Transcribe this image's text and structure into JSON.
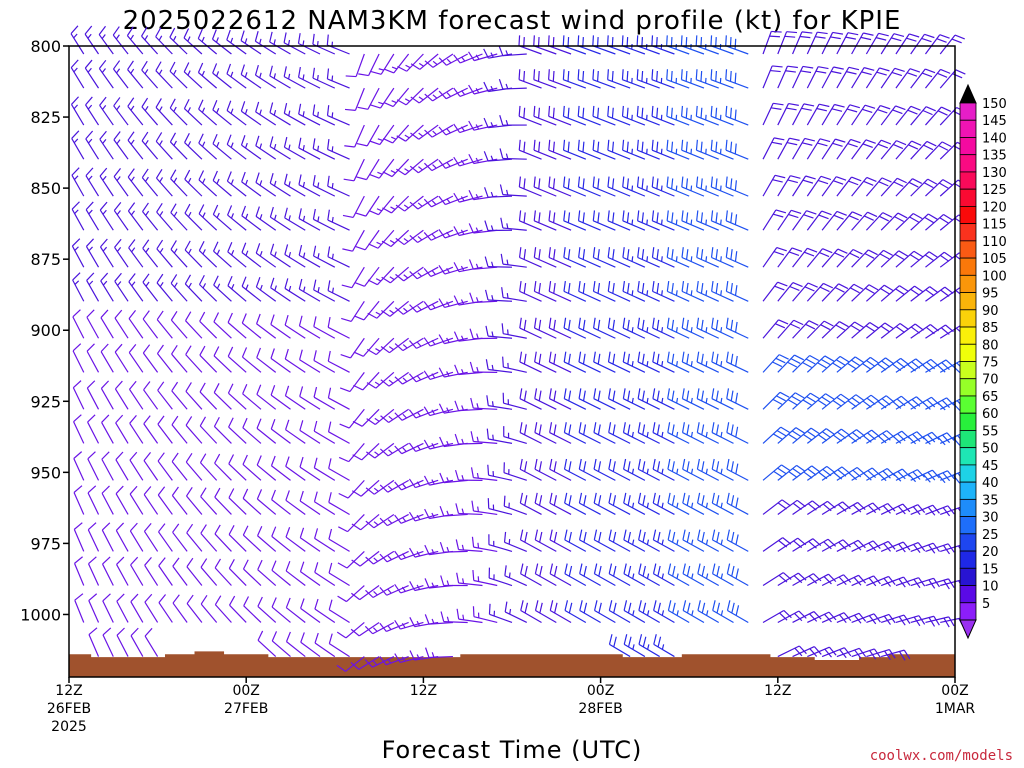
{
  "chart_data": {
    "type": "wind-barb-profile",
    "title": "2025022612 NAM3KM forecast wind profile (kt) for KPIE",
    "xlabel": "Forecast Time (UTC)",
    "ylabel": "",
    "credit": "coolwx.com/models",
    "x_range_hours": [
      0,
      60
    ],
    "x_ticks": [
      {
        "hour": 0,
        "lines": [
          "12Z",
          "26FEB",
          "2025"
        ]
      },
      {
        "hour": 12,
        "lines": [
          "00Z",
          "27FEB"
        ]
      },
      {
        "hour": 24,
        "lines": [
          "12Z"
        ]
      },
      {
        "hour": 36,
        "lines": [
          "00Z",
          "28FEB"
        ]
      },
      {
        "hour": 48,
        "lines": [
          "12Z"
        ]
      },
      {
        "hour": 60,
        "lines": [
          "00Z",
          "1MAR"
        ]
      }
    ],
    "pressure_range_hpa": [
      800,
      1022
    ],
    "y_ticks": [
      "800",
      "825",
      "850",
      "875",
      "900",
      "925",
      "950",
      "975",
      "1000"
    ],
    "surface_pressure_hpa": [
      1014,
      1014,
      1015,
      1015,
      1015,
      1015,
      1015,
      1014,
      1014,
      1013,
      1013,
      1014,
      1014,
      1014,
      1015,
      1015,
      1015,
      1015,
      1015,
      1015,
      1015,
      1015,
      1015,
      1015,
      1015,
      1015,
      1015,
      1014,
      1014,
      1014,
      1014,
      1014,
      1014,
      1014,
      1014,
      1014,
      1014,
      1014,
      1015,
      1015,
      1015,
      1015,
      1014,
      1014,
      1014,
      1014,
      1014,
      1014,
      1015,
      1015,
      1015,
      1016,
      1016,
      1016,
      1015,
      1015,
      1014,
      1014,
      1014,
      1014,
      1014
    ],
    "colorbar": {
      "labels": [
        "150",
        "145",
        "140",
        "135",
        "130",
        "125",
        "120",
        "115",
        "110",
        "105",
        "100",
        "95",
        "90",
        "85",
        "80",
        "75",
        "70",
        "65",
        "60",
        "55",
        "50",
        "45",
        "40",
        "35",
        "30",
        "25",
        "20",
        "15",
        "10",
        "5"
      ],
      "colors": [
        "#e61ec8",
        "#f014b4",
        "#f50aa0",
        "#fa0a82",
        "#fa0a5a",
        "#fa0a32",
        "#fa0a0a",
        "#fa321e",
        "#fa5a14",
        "#fa780a",
        "#fa960a",
        "#fab40a",
        "#fad20a",
        "#faf00a",
        "#f0ff0a",
        "#c8ff1e",
        "#96ff28",
        "#5aff32",
        "#28f03c",
        "#1ee678",
        "#1ee6b4",
        "#1ed2e6",
        "#1eb4fa",
        "#1e8cfa",
        "#1e6efa",
        "#1e46f0",
        "#1e28e6",
        "#2814d2",
        "#5a0ae6",
        "#8c1efa"
      ]
    },
    "barb_grid": {
      "hours_step": 1,
      "levels_hpa": [
        800,
        812,
        825,
        837,
        850,
        862,
        875,
        887,
        900,
        912,
        925,
        937,
        950,
        962,
        975,
        987,
        1000,
        1012
      ],
      "note_speed_range_kt": [
        5,
        35
      ]
    }
  }
}
